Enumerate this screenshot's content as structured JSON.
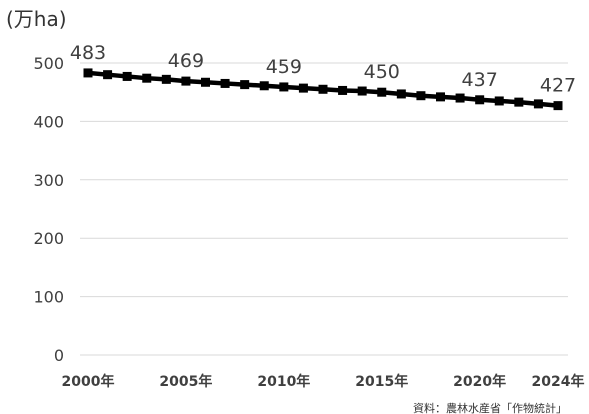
{
  "chart_data": {
    "type": "line",
    "unit_label": "(万ha)",
    "x": [
      2000,
      2001,
      2002,
      2003,
      2004,
      2005,
      2006,
      2007,
      2008,
      2009,
      2010,
      2011,
      2012,
      2013,
      2014,
      2015,
      2016,
      2017,
      2018,
      2019,
      2020,
      2021,
      2022,
      2023,
      2024
    ],
    "series": [
      {
        "values": [
          483,
          480,
          477,
          474,
          472,
          469,
          467,
          465,
          463,
          461,
          459,
          457,
          455,
          453,
          452,
          450,
          447,
          444,
          442,
          440,
          437,
          435,
          433,
          430,
          427
        ]
      }
    ],
    "y_ticks": [
      "0",
      "100",
      "200",
      "300",
      "400",
      "500"
    ],
    "x_ticks": [
      {
        "x": 2000,
        "label": "2000年"
      },
      {
        "x": 2005,
        "label": "2005年"
      },
      {
        "x": 2010,
        "label": "2010年"
      },
      {
        "x": 2015,
        "label": "2015年"
      },
      {
        "x": 2020,
        "label": "2020年"
      },
      {
        "x": 2024,
        "label": "2024年"
      }
    ],
    "data_labels": [
      {
        "x": 2000,
        "text": "483"
      },
      {
        "x": 2005,
        "text": "469"
      },
      {
        "x": 2010,
        "text": "459"
      },
      {
        "x": 2015,
        "text": "450"
      },
      {
        "x": 2020,
        "text": "437"
      },
      {
        "x": 2024,
        "text": "427"
      }
    ],
    "ylim": [
      0,
      500
    ],
    "grid": true,
    "line_color": "#000000",
    "grid_color": "#d9d9d9",
    "source": "資料：農林水産省「作物統計」"
  }
}
